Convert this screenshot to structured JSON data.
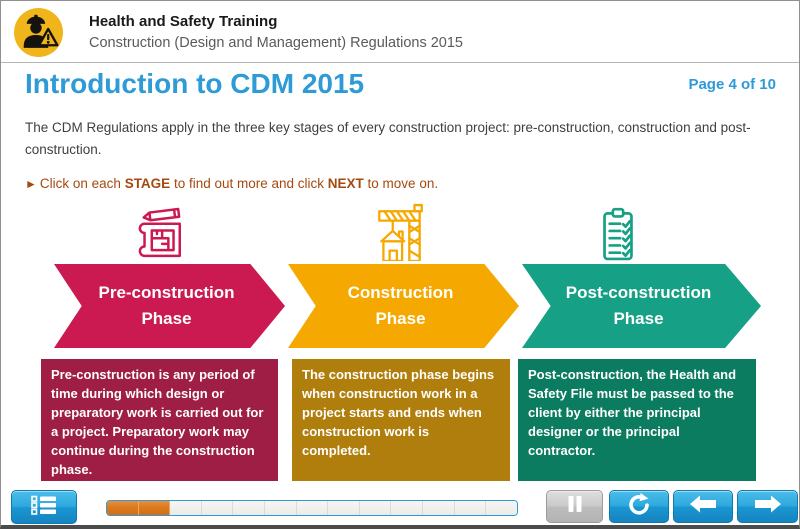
{
  "header": {
    "title": "Health and Safety Training",
    "subtitle": "Construction (Design and Management) Regulations 2015",
    "logo_icon": "construction-worker-warning-icon"
  },
  "page": {
    "title": "Introduction to CDM 2015",
    "page_indicator": "Page 4 of 10",
    "intro": "The CDM Regulations apply in the three key stages of every construction project: pre-construction, construction and post-construction.",
    "instruction": {
      "bullet": "►",
      "parts": [
        "Click on each ",
        "STAGE",
        " to find out more and click ",
        "NEXT",
        " to move on."
      ]
    }
  },
  "stages": [
    {
      "id": "pre-construction",
      "icon": "blueprint-pencil-icon",
      "label_line1": "Pre-construction",
      "label_line2": "Phase",
      "arrow_color": "#CB1A51",
      "box_color": "#9E1E45",
      "description": "Pre-construction is any period of time during which design or preparatory work is carried out for a project. Preparatory work may continue during the construction phase."
    },
    {
      "id": "construction",
      "icon": "crane-icon",
      "label_line1": "Construction",
      "label_line2": "Phase",
      "arrow_color": "#F5A800",
      "box_color": "#B07E0C",
      "description": "The construction phase begins when construction work in a project starts and ends when construction work is completed."
    },
    {
      "id": "post-construction",
      "icon": "checklist-clipboard-icon",
      "label_line1": "Post-construction",
      "label_line2": "Phase",
      "arrow_color": "#16A085",
      "box_color": "#0C7C60",
      "description": "Post-construction,  the Health and Safety File must be passed to the client by either the principal designer or the principal contractor."
    }
  ],
  "toolbar": {
    "menu_button_icon": "list-menu-icon",
    "progress": {
      "segments": 13,
      "filled": 2
    },
    "pause_button_icon": "pause-icon",
    "replay_button_icon": "replay-icon",
    "back_button_icon": "back-arrow-icon",
    "next_button_icon": "next-arrow-icon"
  },
  "colors": {
    "title_blue": "#2E9BD6",
    "instruction_rust": "#A5490F",
    "header_yellow": "#F0B51B",
    "progress_orange": "#DC7A1E",
    "button_blue": "#1E9AD4"
  }
}
